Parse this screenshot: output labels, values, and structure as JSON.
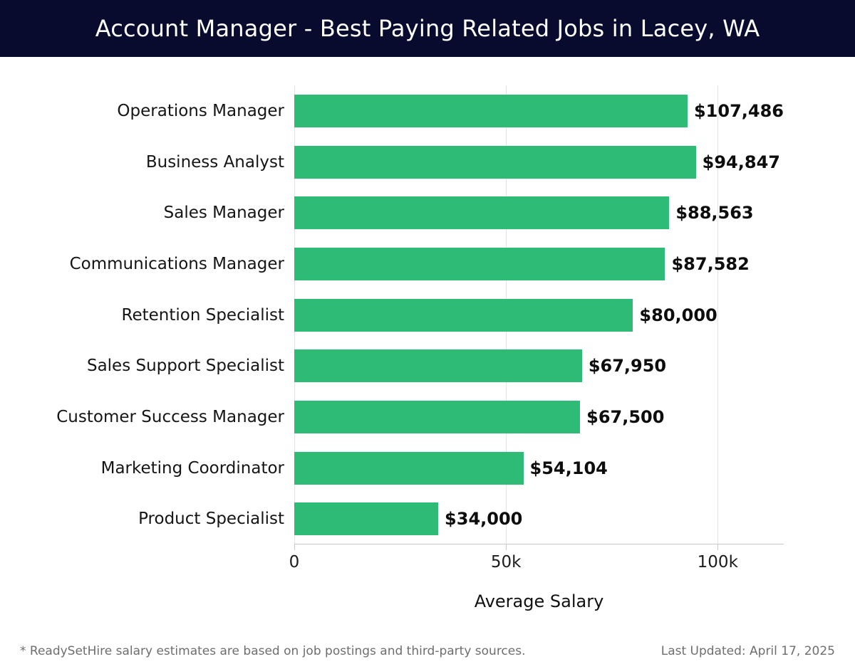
{
  "header": {
    "title": "Account Manager - Best Paying Related Jobs in Lacey, WA",
    "bg_color": "#080b2e",
    "text_color": "#ffffff"
  },
  "chart_data": {
    "type": "bar",
    "orientation": "horizontal",
    "title": "Account Manager - Best Paying Related Jobs in Lacey, WA",
    "categories": [
      "Operations Manager",
      "Business Analyst",
      "Sales Manager",
      "Communications Manager",
      "Retention Specialist",
      "Sales Support Specialist",
      "Customer Success Manager",
      "Marketing Coordinator",
      "Product Specialist"
    ],
    "values": [
      107486,
      94847,
      88563,
      87582,
      80000,
      67950,
      67500,
      54104,
      34000
    ],
    "value_labels": [
      "$107,486",
      "$94,847",
      "$88,563",
      "$87,582",
      "$80,000",
      "$67,950",
      "$67,500",
      "$54,104",
      "$34,000"
    ],
    "xlabel": "Average Salary",
    "ylabel": "",
    "xticks": [
      {
        "value": 0,
        "label": "0"
      },
      {
        "value": 50000,
        "label": "50k"
      },
      {
        "value": 100000,
        "label": "100k"
      }
    ],
    "xlim": [
      0,
      115600
    ],
    "grid": true,
    "legend": "none",
    "bar_color": "#2dbb76",
    "gridline_color": "#e4e4e4",
    "axis_line_color": "#c9c9c9"
  },
  "footer": {
    "note": "* ReadySetHire salary estimates are based on job postings and third-party sources.",
    "last_updated": "Last Updated: April 17, 2025"
  }
}
